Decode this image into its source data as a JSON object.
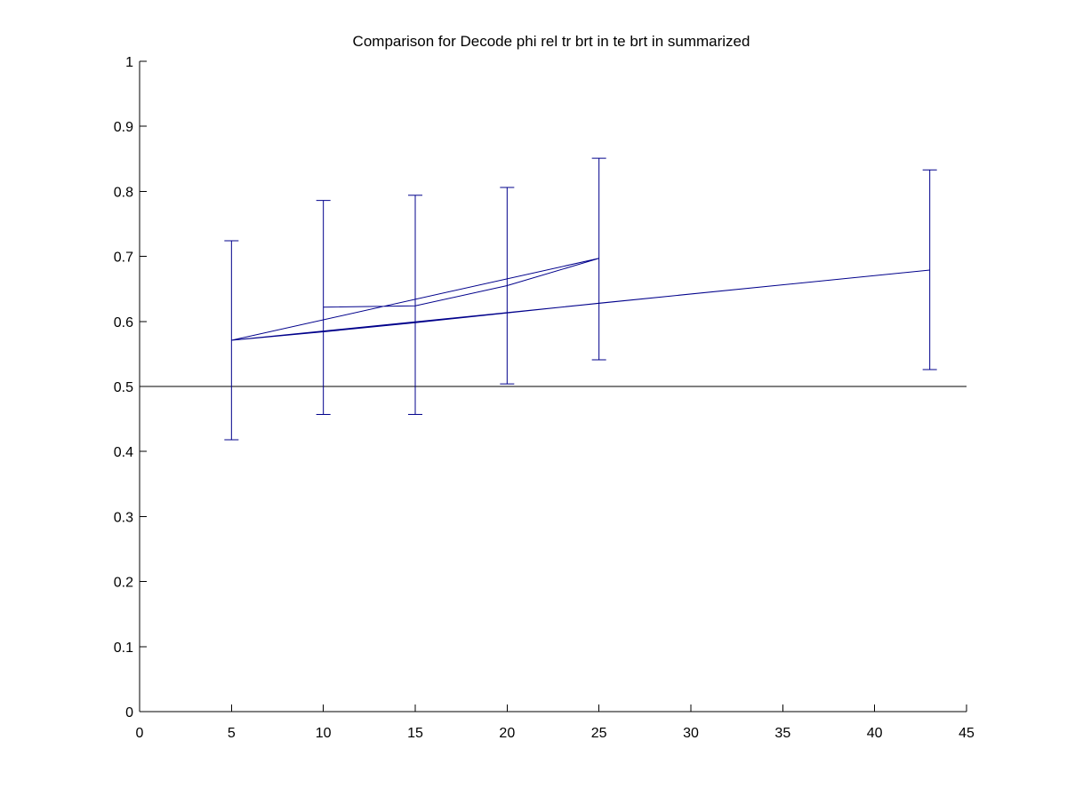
{
  "chart_data": {
    "type": "line",
    "title": "Comparison for Decode phi rel tr brt in te brt in  summarized",
    "xlabel": "",
    "ylabel": "",
    "xlim": [
      0,
      45
    ],
    "ylim": [
      0,
      1
    ],
    "x_ticks": [
      0,
      5,
      10,
      15,
      20,
      25,
      30,
      35,
      40,
      45
    ],
    "y_ticks": [
      0,
      0.1,
      0.2,
      0.3,
      0.4,
      0.5,
      0.6,
      0.7,
      0.8,
      0.9,
      1
    ],
    "x_tick_labels": [
      "0",
      "5",
      "10",
      "15",
      "20",
      "25",
      "30",
      "35",
      "40",
      "45"
    ],
    "y_tick_labels": [
      "0",
      "0.1",
      "0.2",
      "0.3",
      "0.4",
      "0.5",
      "0.6",
      "0.7",
      "0.8",
      "0.9",
      "1"
    ],
    "grid": false,
    "legend": "none",
    "line_color": "#00008b",
    "reference_line": {
      "y": 0.5,
      "color": "#000000"
    },
    "trace": [
      {
        "x": 5,
        "y": 0.571
      },
      {
        "x": 10,
        "y": 0.584
      },
      {
        "x": 15,
        "y": 0.598
      },
      {
        "x": 20,
        "y": 0.613
      },
      {
        "x": 25,
        "y": 0.628
      },
      {
        "x": 43,
        "y": 0.679
      },
      {
        "x": 5,
        "y": 0.571
      },
      {
        "x": 25,
        "y": 0.697
      },
      {
        "x": 20,
        "y": 0.655
      },
      {
        "x": 15,
        "y": 0.624
      },
      {
        "x": 10,
        "y": 0.622
      }
    ],
    "error_bars": [
      {
        "x": 5,
        "y": 0.571,
        "low": 0.418,
        "high": 0.724
      },
      {
        "x": 10,
        "y": 0.622,
        "low": 0.457,
        "high": 0.786
      },
      {
        "x": 15,
        "y": 0.624,
        "low": 0.457,
        "high": 0.794
      },
      {
        "x": 20,
        "y": 0.655,
        "low": 0.504,
        "high": 0.806
      },
      {
        "x": 25,
        "y": 0.697,
        "low": 0.541,
        "high": 0.851
      },
      {
        "x": 43,
        "y": 0.679,
        "low": 0.526,
        "high": 0.833
      }
    ]
  }
}
